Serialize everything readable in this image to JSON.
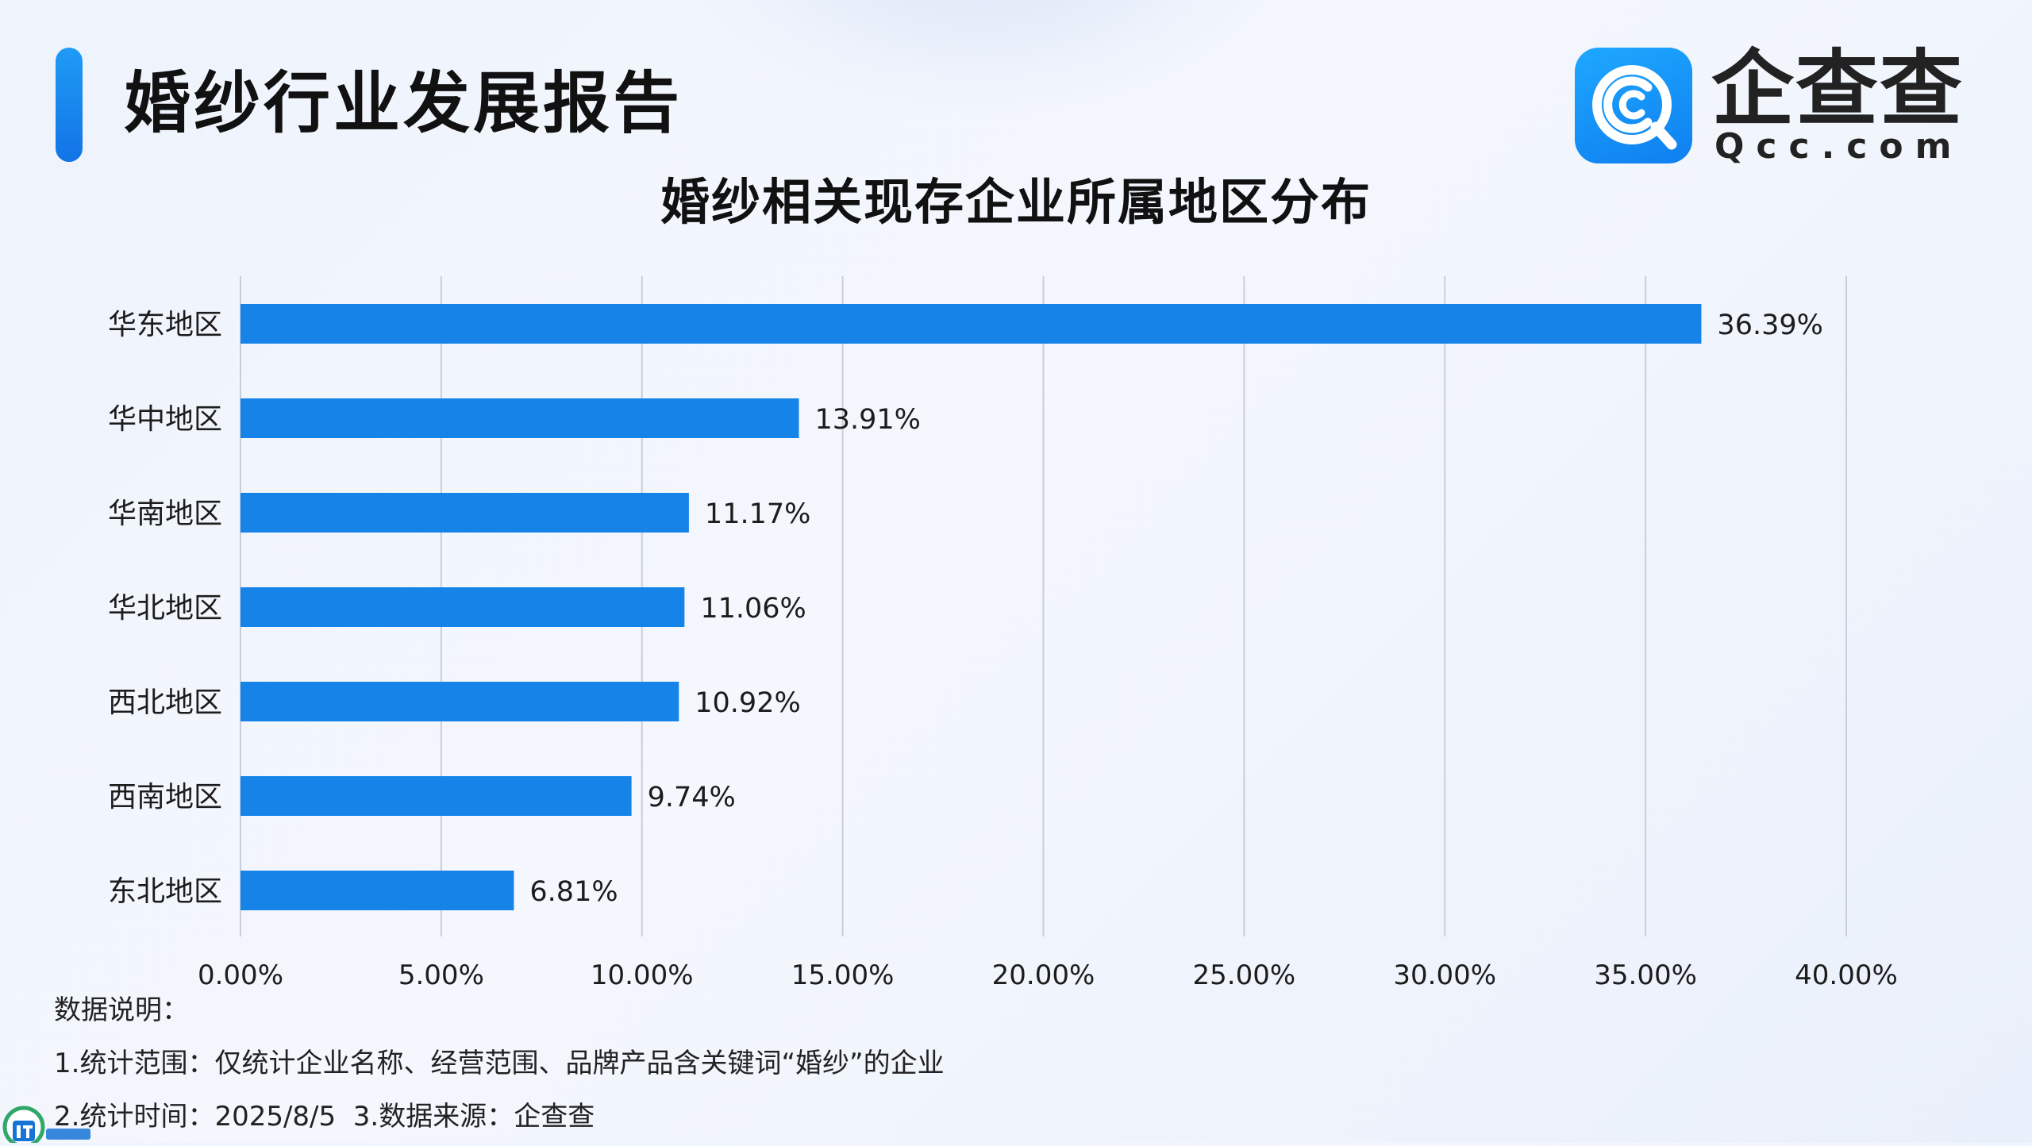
{
  "header": {
    "title": "婚纱行业发展报告"
  },
  "logo": {
    "cn_text": "企查查",
    "en_text": "Qcc.com",
    "icon": "qcc-logo-icon"
  },
  "colors": {
    "accent": "#1583e8",
    "bar": "#1583e8",
    "grid": "#c9ced8"
  },
  "chart_data": {
    "type": "bar",
    "orientation": "horizontal",
    "title": "婚纱相关现存企业所属地区分布",
    "categories": [
      "华东地区",
      "华中地区",
      "华南地区",
      "华北地区",
      "西北地区",
      "西南地区",
      "东北地区"
    ],
    "values": [
      36.39,
      13.91,
      11.17,
      11.06,
      10.92,
      9.74,
      6.81
    ],
    "value_labels": [
      "36.39%",
      "13.91%",
      "11.17%",
      "11.06%",
      "10.92%",
      "9.74%",
      "6.81%"
    ],
    "xlim": [
      0,
      40
    ],
    "x_ticks": [
      "0.00%",
      "5.00%",
      "10.00%",
      "15.00%",
      "20.00%",
      "25.00%",
      "30.00%",
      "35.00%",
      "40.00%"
    ],
    "grid": "vertical",
    "legend": "none",
    "xlabel": "",
    "ylabel": ""
  },
  "notes": {
    "heading": "数据说明：",
    "line1": "1.统计范围：仅统计企业名称、经营范围、品牌产品含关键词“婚纱”的企业",
    "line2": "2.统计时间：2025/8/5  3.数据来源：企查查"
  },
  "footer": {
    "badge_icon": "it-home-badge-icon"
  }
}
